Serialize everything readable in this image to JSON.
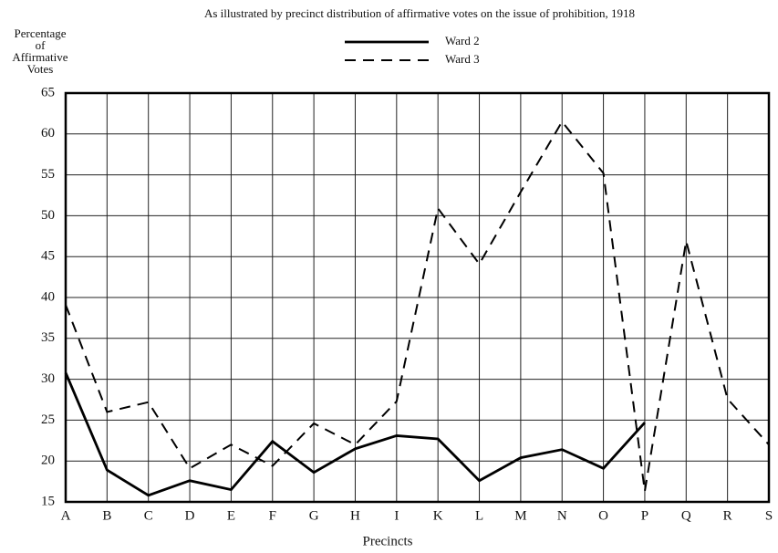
{
  "chart_data": {
    "type": "line",
    "title": "As illustrated by precinct distribution of affirmative votes on the issue of prohibition, 1918",
    "ylabel": [
      "Percentage",
      "of",
      "Affirmative",
      "Votes"
    ],
    "xlabel": "Precincts",
    "categories": [
      "A",
      "B",
      "C",
      "D",
      "E",
      "F",
      "G",
      "H",
      "I",
      "K",
      "L",
      "M",
      "N",
      "O",
      "P",
      "Q",
      "R",
      "S"
    ],
    "series": [
      {
        "name": "Ward 2",
        "color": "#000000",
        "dash": "solid",
        "values": [
          30.8,
          18.9,
          15.8,
          17.6,
          16.5,
          22.4,
          18.6,
          21.5,
          23.1,
          22.7,
          17.6,
          20.4,
          21.4,
          19.1,
          24.7,
          null,
          null,
          null
        ]
      },
      {
        "name": "Ward 3",
        "color": "#000000",
        "dash": "dashed",
        "values": [
          39.1,
          26,
          27.2,
          19.1,
          22,
          19.4,
          24.6,
          22,
          27.3,
          50.9,
          44.1,
          52.9,
          61.5,
          55.2,
          16.3,
          46.9,
          27.6,
          22
        ]
      }
    ],
    "ylim": [
      15,
      65
    ],
    "yticks": [
      15,
      20,
      25,
      30,
      35,
      40,
      45,
      50,
      55,
      60,
      65
    ],
    "grid": true
  }
}
